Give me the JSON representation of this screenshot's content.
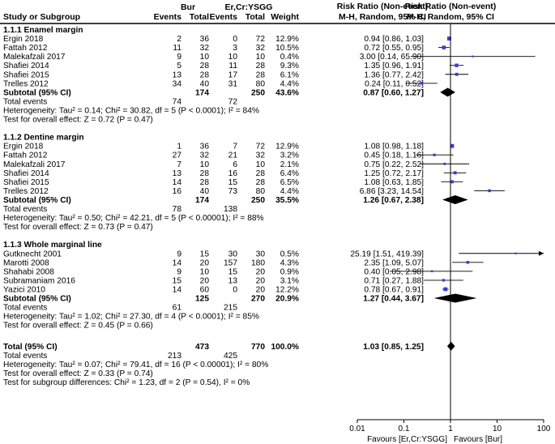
{
  "header": {
    "study_col": "Study or Subgroup",
    "exp_group": "Bur",
    "ctl_group": "Er,Cr:YSGG",
    "events": "Events",
    "total": "Total",
    "weight": "Weight",
    "rr_title": "Risk Ratio (Non-event)",
    "rr_method": "M-H, Random, 95% CI",
    "plot_title": "Risk Ratio (Non-event)",
    "plot_method": "M-H, Random, 95% CI"
  },
  "chart_data": {
    "type": "forest",
    "x_scale": "log",
    "xlim": [
      0.01,
      100
    ],
    "x_ticks": [
      "0.01",
      "0.1",
      "1",
      "10",
      "100"
    ],
    "x_tick_values": [
      0.01,
      0.1,
      1,
      10,
      100
    ],
    "label_left": "Favours [Er,Cr:YSGG]",
    "label_right": "Favours [Bur]",
    "colors": {
      "study_marker": "#3b3bd6",
      "diamond": "#000000",
      "line": "#000000"
    },
    "subgroups": [
      {
        "title": "1.1.1 Enamel margin",
        "studies": [
          {
            "name": "Ergin 2018",
            "e1": "2",
            "t1": "36",
            "e2": "0",
            "t2": "72",
            "weight": "12.9%",
            "ci_text": "0.94 [0.86, 1.03]",
            "rr": 0.94,
            "lo": 0.86,
            "hi": 1.03
          },
          {
            "name": "Fattah 2012",
            "e1": "11",
            "t1": "32",
            "e2": "3",
            "t2": "32",
            "weight": "10.5%",
            "ci_text": "0.72 [0.55, 0.95]",
            "rr": 0.72,
            "lo": 0.55,
            "hi": 0.95
          },
          {
            "name": "Malekafzali 2017",
            "e1": "9",
            "t1": "10",
            "e2": "10",
            "t2": "10",
            "weight": "0.4%",
            "ci_text": "3.00 [0.14, 65.90]",
            "rr": 3.0,
            "lo": 0.14,
            "hi": 65.9
          },
          {
            "name": "Shafiei 2014",
            "e1": "5",
            "t1": "28",
            "e2": "11",
            "t2": "28",
            "weight": "9.3%",
            "ci_text": "1.35 [0.96, 1.91]",
            "rr": 1.35,
            "lo": 0.96,
            "hi": 1.91
          },
          {
            "name": "Shafiei 2015",
            "e1": "13",
            "t1": "28",
            "e2": "17",
            "t2": "28",
            "weight": "6.1%",
            "ci_text": "1.36 [0.77, 2.42]",
            "rr": 1.36,
            "lo": 0.77,
            "hi": 2.42
          },
          {
            "name": "Trelles 2012",
            "e1": "34",
            "t1": "40",
            "e2": "31",
            "t2": "80",
            "weight": "4.4%",
            "ci_text": "0.24 [0.11, 0.52]",
            "rr": 0.24,
            "lo": 0.11,
            "hi": 0.52
          }
        ],
        "subtotal": {
          "label": "Subtotal (95% CI)",
          "t1": "174",
          "t2": "250",
          "weight": "43.6%",
          "ci_text": "0.87 [0.60, 1.27]",
          "rr": 0.87,
          "lo": 0.6,
          "hi": 1.27
        },
        "total_events": {
          "label": "Total events",
          "e1": "74",
          "e2": "72"
        },
        "het_text": "Heterogeneity: Tau² = 0.14; Chi² = 30.82, df = 5 (P < 0.0001); I² = 84%",
        "effect_text": "Test for overall effect: Z = 0.72 (P = 0.47)"
      },
      {
        "title": "1.1.2 Dentine margin",
        "studies": [
          {
            "name": "Ergin 2018",
            "e1": "1",
            "t1": "36",
            "e2": "7",
            "t2": "72",
            "weight": "12.9%",
            "ci_text": "1.08 [0.98, 1.18]",
            "rr": 1.08,
            "lo": 0.98,
            "hi": 1.18
          },
          {
            "name": "Fattah 2012",
            "e1": "27",
            "t1": "32",
            "e2": "21",
            "t2": "32",
            "weight": "3.2%",
            "ci_text": "0.45 [0.18, 1.16]",
            "rr": 0.45,
            "lo": 0.18,
            "hi": 1.16
          },
          {
            "name": "Malekafzali 2017",
            "e1": "7",
            "t1": "10",
            "e2": "6",
            "t2": "10",
            "weight": "2.1%",
            "ci_text": "0.75 [0.22, 2.52]",
            "rr": 0.75,
            "lo": 0.22,
            "hi": 2.52
          },
          {
            "name": "Shafiei 2014",
            "e1": "13",
            "t1": "28",
            "e2": "16",
            "t2": "28",
            "weight": "6.4%",
            "ci_text": "1.25 [0.72, 2.17]",
            "rr": 1.25,
            "lo": 0.72,
            "hi": 2.17
          },
          {
            "name": "Shafiei 2015",
            "e1": "14",
            "t1": "28",
            "e2": "15",
            "t2": "28",
            "weight": "6.5%",
            "ci_text": "1.08 [0.63, 1.85]",
            "rr": 1.08,
            "lo": 0.63,
            "hi": 1.85
          },
          {
            "name": "Trelles 2012",
            "e1": "16",
            "t1": "40",
            "e2": "73",
            "t2": "80",
            "weight": "4.4%",
            "ci_text": "6.86 [3.23, 14.54]",
            "rr": 6.86,
            "lo": 3.23,
            "hi": 14.54
          }
        ],
        "subtotal": {
          "label": "Subtotal (95% CI)",
          "t1": "174",
          "t2": "250",
          "weight": "35.5%",
          "ci_text": "1.26 [0.67, 2.38]",
          "rr": 1.26,
          "lo": 0.67,
          "hi": 2.38
        },
        "total_events": {
          "label": "Total events",
          "e1": "78",
          "e2": "138"
        },
        "het_text": "Heterogeneity: Tau² = 0.50; Chi² = 42.21, df = 5 (P < 0.00001); I² = 88%",
        "effect_text": "Test for overall effect: Z = 0.73 (P = 0.47)"
      },
      {
        "title": "1.1.3 Whole marginal line",
        "studies": [
          {
            "name": "Gutknecht 2001",
            "e1": "9",
            "t1": "15",
            "e2": "30",
            "t2": "30",
            "weight": "0.5%",
            "ci_text": "25.19 [1.51, 419.39]",
            "rr": 25.19,
            "lo": 1.51,
            "hi": 419.39
          },
          {
            "name": "Marotti 2008",
            "e1": "14",
            "t1": "20",
            "e2": "157",
            "t2": "180",
            "weight": "4.3%",
            "ci_text": "2.35 [1.09, 5.07]",
            "rr": 2.35,
            "lo": 1.09,
            "hi": 5.07
          },
          {
            "name": "Shahabi 2008",
            "e1": "9",
            "t1": "10",
            "e2": "15",
            "t2": "20",
            "weight": "0.9%",
            "ci_text": "0.40 [0.05, 2.98]",
            "rr": 0.4,
            "lo": 0.05,
            "hi": 2.98
          },
          {
            "name": "Subramaniam 2016",
            "e1": "15",
            "t1": "20",
            "e2": "13",
            "t2": "20",
            "weight": "3.1%",
            "ci_text": "0.71 [0.27, 1.88]",
            "rr": 0.71,
            "lo": 0.27,
            "hi": 1.88
          },
          {
            "name": "Yazici 2010",
            "e1": "14",
            "t1": "60",
            "e2": "0",
            "t2": "20",
            "weight": "12.2%",
            "ci_text": "0.78 [0.67, 0.91]",
            "rr": 0.78,
            "lo": 0.67,
            "hi": 0.91
          }
        ],
        "subtotal": {
          "label": "Subtotal (95% CI)",
          "t1": "125",
          "t2": "270",
          "weight": "20.9%",
          "ci_text": "1.27 [0.44, 3.67]",
          "rr": 1.27,
          "lo": 0.44,
          "hi": 3.67
        },
        "total_events": {
          "label": "Total events",
          "e1": "61",
          "e2": "215"
        },
        "het_text": "Heterogeneity: Tau² = 1.02; Chi² = 27.30, df = 4 (P < 0.0001); I² = 85%",
        "effect_text": "Test for overall effect: Z = 0.45 (P = 0.66)"
      }
    ],
    "overall": {
      "label": "Total (95% CI)",
      "t1": "473",
      "t2": "770",
      "weight": "100.0%",
      "ci_text": "1.03 [0.85, 1.25]",
      "rr": 1.03,
      "lo": 0.85,
      "hi": 1.25,
      "total_events": {
        "label": "Total events",
        "e1": "213",
        "e2": "425"
      },
      "het_text": "Heterogeneity: Tau² = 0.07; Chi² = 79.41, df = 16 (P < 0.00001); I² = 80%",
      "effect_text": "Test for overall effect: Z = 0.33 (P = 0.74)",
      "subgroup_text": "Test for subgroup differences: Chi² = 1.23, df = 2 (P = 0.54), I² = 0%"
    }
  }
}
